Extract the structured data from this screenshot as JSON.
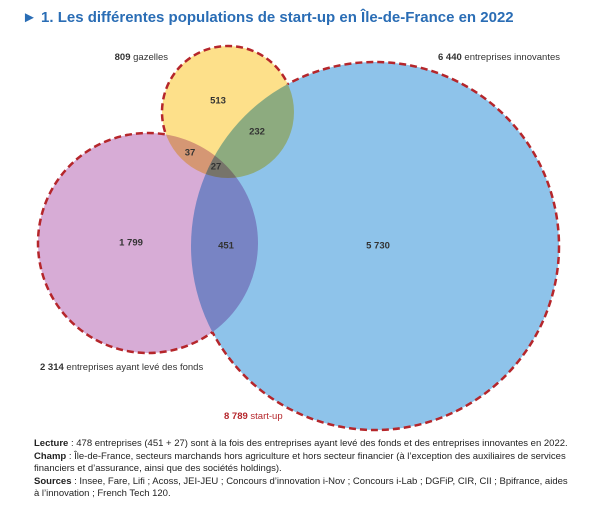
{
  "title": "► 1. Les différentes populations de start-up en Île-de-France en 2022",
  "labels": [
    {
      "number": "809",
      "text": "gazelles"
    },
    {
      "number": "6 440",
      "text": "entreprises innovantes"
    },
    {
      "number": "2 314",
      "text": "entreprises ayant levé des fonds"
    },
    {
      "number": "8 789",
      "text": "start-up"
    }
  ],
  "regions": [
    "513",
    "232",
    "37",
    "27",
    "1 799",
    "451",
    "5 730"
  ],
  "notes": [
    {
      "label": "Lecture",
      "text": " : 478 entreprises (451 + 27) sont à la fois des entreprises ayant levé des fonds et des entreprises innovantes en 2022."
    },
    {
      "label": "Champ",
      "text": " : Île-de-France, secteurs marchands hors agriculture et hors secteur financier (à l’exception des auxiliaires de services financiers et d’assurance, ainsi que des sociétés holdings)."
    },
    {
      "label": "Sources",
      "text": " : Insee, Fare, Lifi ; Acoss, JEI-JEU ; Concours d’innovation i-Nov ; Concours i-Lab ; DGFiP, CIR, CII ; Bpifrance, aides à l’innovation ; French Tech 120."
    }
  ]
}
